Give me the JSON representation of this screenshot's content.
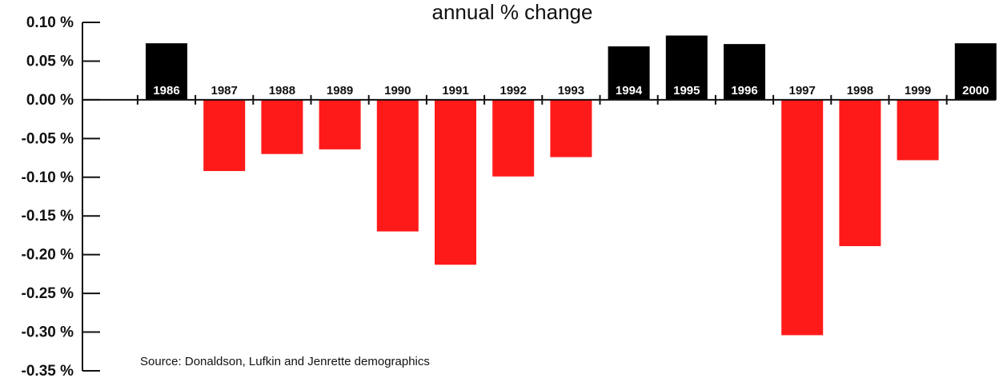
{
  "chart_data": {
    "type": "bar",
    "title": "annual % change",
    "categories": [
      "1986",
      "1987",
      "1988",
      "1989",
      "1990",
      "1991",
      "1992",
      "1993",
      "1994",
      "1995",
      "1996",
      "1997",
      "1998",
      "1999",
      "2000"
    ],
    "values": [
      0.073,
      -0.092,
      -0.07,
      -0.064,
      -0.17,
      -0.213,
      -0.099,
      -0.074,
      0.069,
      0.083,
      0.072,
      -0.304,
      -0.189,
      -0.078,
      0.073
    ],
    "ylim": [
      -0.35,
      0.1
    ],
    "yticks": [
      "0.10 %",
      "0.05 %",
      "0.00 %",
      "-0.05 %",
      "-0.10 %",
      "-0.15 %",
      "-0.20 %",
      "-0.25 %",
      "-0.30 %",
      "-0.35 %"
    ],
    "colors": {
      "positive": "#000000",
      "negative": "#ff1a1a"
    },
    "annotation": "Source: Donaldson, Lufkin and Jenrette demographics",
    "xlabel": "",
    "ylabel": ""
  }
}
